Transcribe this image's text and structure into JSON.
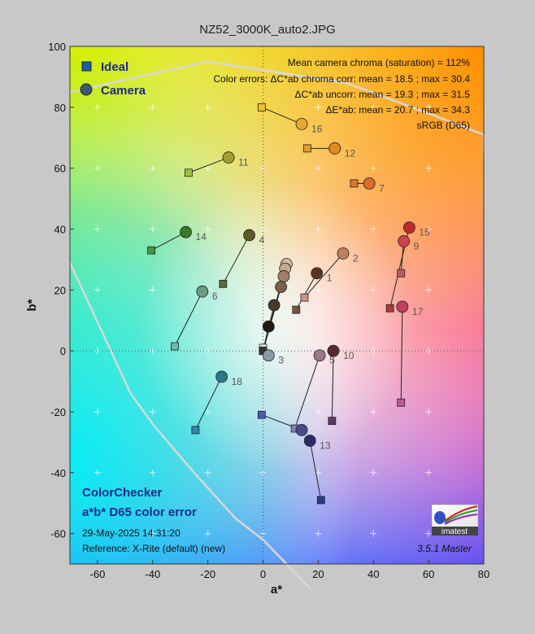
{
  "chart_data": {
    "type": "scatter",
    "title": "NZ52_3000K_auto2.JPG",
    "xlabel": "a*",
    "ylabel": "b*",
    "xlim": [
      -70,
      80
    ],
    "ylim": [
      -70,
      100
    ],
    "xticks": [
      -60,
      -40,
      -20,
      0,
      20,
      40,
      60,
      80
    ],
    "yticks": [
      -60,
      -40,
      -20,
      0,
      20,
      40,
      60,
      80,
      100
    ],
    "grid": true,
    "legend_position": "top-left",
    "legend": [
      {
        "name": "Ideal",
        "marker": "square",
        "color": "#1f5fa0"
      },
      {
        "name": "Camera",
        "marker": "circle",
        "color": "#3f5a6a"
      }
    ],
    "info_lines": [
      "Mean camera chroma (saturation) = 112%",
      "Color errors: ΔC*ab chroma corr:  mean = 18.5 ;  max = 30.4",
      "ΔC*ab uncorr:  mean = 19.3 ;  max = 31.5",
      "ΔE*ab:  mean = 20.7 ;  max = 34.3",
      "sRGB (D65)"
    ],
    "annotation_title": "ColorChecker",
    "annotation_subtitle": "a*b* D65 color error",
    "timestamp": "29-May-2025 14:31:20",
    "reference": "Reference: X-Rite (default) (new)",
    "version": "3.5.1  Master",
    "logo_text": "imatest",
    "gamut_outline": [
      [
        -70,
        85
      ],
      [
        -20,
        95
      ],
      [
        30,
        88
      ],
      [
        60,
        78
      ],
      [
        80,
        71
      ],
      [
        80,
        65
      ]
    ],
    "gamut_outline_lower": [
      [
        -70,
        29
      ],
      [
        -48,
        -14
      ],
      [
        -40,
        -24
      ],
      [
        -25,
        -40
      ],
      [
        -10,
        -55
      ],
      [
        0,
        -62
      ],
      [
        17,
        -78
      ]
    ],
    "patches": [
      {
        "id": "1",
        "ideal": [
          12,
          13.5
        ],
        "camera": [
          19.5,
          25.5
        ],
        "ideal_color": "#7a5242",
        "camera_color": "#5a3322",
        "show_label": true
      },
      {
        "id": "2",
        "ideal": [
          15,
          17.5
        ],
        "camera": [
          29,
          32
        ],
        "ideal_color": "#c89682",
        "camera_color": "#c07e60",
        "show_label": true
      },
      {
        "id": "3",
        "ideal": [
          0,
          1
        ],
        "camera": [
          2,
          -1.5
        ],
        "ideal_color": "#e2e2e2",
        "camera_color": "#8a9aa8",
        "show_label": true
      },
      {
        "id": "4",
        "ideal": [
          -14.5,
          22
        ],
        "camera": [
          -5,
          38
        ],
        "ideal_color": "#5a6a3a",
        "camera_color": "#5a5a28",
        "show_label": true
      },
      {
        "id": "5",
        "ideal": [
          11.5,
          -25.5
        ],
        "camera": [
          20.5,
          -1.5
        ],
        "ideal_color": "#8080b2",
        "camera_color": "#9a7a8a",
        "show_label": true
      },
      {
        "id": "6",
        "ideal": [
          -32,
          1.5
        ],
        "camera": [
          -22,
          19.5
        ],
        "ideal_color": "#68bcaa",
        "camera_color": "#6a9a80",
        "show_label": true
      },
      {
        "id": "7",
        "ideal": [
          33,
          55
        ],
        "camera": [
          38.5,
          55
        ],
        "ideal_color": "#da7a2a",
        "camera_color": "#e06a2a",
        "show_label": true
      },
      {
        "id": "8",
        "ideal": [
          -0.5,
          -21
        ],
        "camera": [
          14,
          -26
        ],
        "ideal_color": "#4a5aa8",
        "camera_color": "#4a4a8a",
        "show_label": false
      },
      {
        "id": "9",
        "ideal": [
          50,
          25.5
        ],
        "camera": [
          51,
          36
        ],
        "ideal_color": "#c25a62",
        "camera_color": "#d04050",
        "show_label": true
      },
      {
        "id": "10",
        "ideal": [
          25,
          -23
        ],
        "camera": [
          25.5,
          0
        ],
        "ideal_color": "#5a3a6a",
        "camera_color": "#5a2a30",
        "show_label": true
      },
      {
        "id": "11",
        "ideal": [
          -27,
          58.5
        ],
        "camera": [
          -12.5,
          63.5
        ],
        "ideal_color": "#9ebe40",
        "camera_color": "#a0a030",
        "show_label": true
      },
      {
        "id": "12",
        "ideal": [
          16,
          66.5
        ],
        "camera": [
          26,
          66.5
        ],
        "ideal_color": "#e29e2a",
        "camera_color": "#e08a20",
        "show_label": true
      },
      {
        "id": "13",
        "ideal": [
          21,
          -49
        ],
        "camera": [
          17,
          -29.5
        ],
        "ideal_color": "#2a3a8a",
        "camera_color": "#2a2a6a",
        "show_label": true
      },
      {
        "id": "14",
        "ideal": [
          -40.5,
          33
        ],
        "camera": [
          -28,
          39
        ],
        "ideal_color": "#46944a",
        "camera_color": "#3a7a2a",
        "show_label": true
      },
      {
        "id": "15",
        "ideal": [
          46,
          14
        ],
        "camera": [
          53,
          40.5
        ],
        "ideal_color": "#b03a3a",
        "camera_color": "#c02a2a",
        "show_label": true
      },
      {
        "id": "16",
        "ideal": [
          -0.5,
          80
        ],
        "camera": [
          14,
          74.5
        ],
        "ideal_color": "#eec22a",
        "camera_color": "#e8a830",
        "show_label": true
      },
      {
        "id": "17",
        "ideal": [
          50,
          -17
        ],
        "camera": [
          50.5,
          14.5
        ],
        "ideal_color": "#bc5a92",
        "camera_color": "#c04060",
        "show_label": true
      },
      {
        "id": "18",
        "ideal": [
          -24.5,
          -26
        ],
        "camera": [
          -15,
          -8.5
        ],
        "ideal_color": "#2a88a8",
        "camera_color": "#2a7a8a",
        "show_label": true
      },
      {
        "id": "19",
        "ideal": [
          0,
          0
        ],
        "camera": [
          8.5,
          28.5
        ],
        "ideal_color": "#f2f2f2",
        "camera_color": "#d8b8a0",
        "show_label": false
      },
      {
        "id": "20",
        "ideal": [
          0,
          0
        ],
        "camera": [
          8,
          27
        ],
        "ideal_color": "#cacaca",
        "camera_color": "#c8a890",
        "show_label": false
      },
      {
        "id": "21",
        "ideal": [
          0,
          0
        ],
        "camera": [
          7.5,
          24.5
        ],
        "ideal_color": "#a0a0a0",
        "camera_color": "#a08068",
        "show_label": false
      },
      {
        "id": "22",
        "ideal": [
          0,
          0
        ],
        "camera": [
          6.5,
          21
        ],
        "ideal_color": "#7a7a7a",
        "camera_color": "#7a6048",
        "show_label": false
      },
      {
        "id": "23",
        "ideal": [
          0,
          0
        ],
        "camera": [
          4,
          15
        ],
        "ideal_color": "#555555",
        "camera_color": "#4a3a2a",
        "show_label": false
      },
      {
        "id": "24",
        "ideal": [
          0,
          0
        ],
        "camera": [
          2,
          8
        ],
        "ideal_color": "#343434",
        "camera_color": "#221a12",
        "show_label": false
      }
    ]
  }
}
